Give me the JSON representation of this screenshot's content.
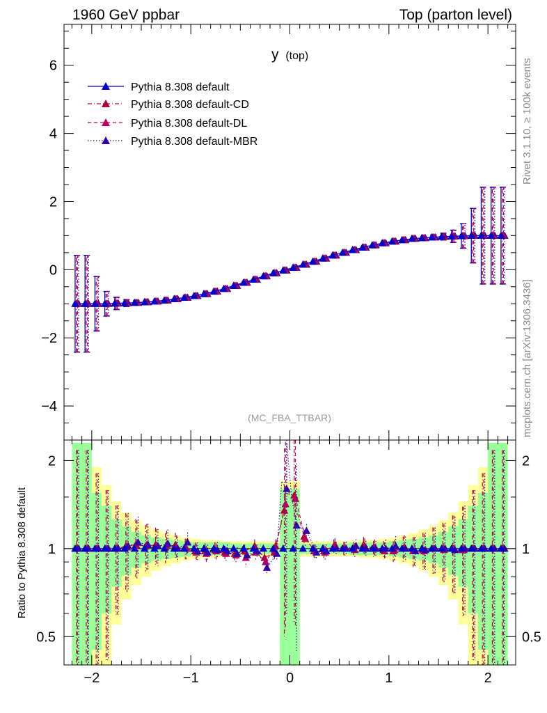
{
  "header": {
    "left_label": "1960 GeV ppbar",
    "right_label": "Top (parton level)"
  },
  "side_labels": {
    "rivet": "Rivet 3.1.10, ≥ 100k events",
    "mcplots": "mcplots.cern.ch [arXiv:1306.3436]"
  },
  "chart_data": {
    "type": "line",
    "title": "y",
    "title_sub": "(top)",
    "analysis_tag": "(MC_FBA_TTBAR)",
    "xlim": [
      -2.28,
      2.28
    ],
    "ylim": [
      -5.0,
      7.2
    ],
    "x_ticks": [
      -2,
      -1,
      0,
      1,
      2
    ],
    "x_tick_labels": [
      "−2",
      "−1",
      "0",
      "1",
      "2"
    ],
    "y_ticks": [
      -4,
      -2,
      0,
      2,
      4,
      6
    ],
    "y_tick_labels": [
      "−4",
      "−2",
      "0",
      "2",
      "4",
      "6"
    ],
    "legend_position": "top-left",
    "series": [
      {
        "name": "Pythia 8.308 default",
        "color": "#0000cc",
        "style": "solid",
        "role": "reference"
      },
      {
        "name": "Pythia 8.308 default-CD",
        "color": "#b0003a",
        "style": "dashdot"
      },
      {
        "name": "Pythia 8.308 default-DL",
        "color": "#b8005a",
        "style": "dashed"
      },
      {
        "name": "Pythia 8.308 default-MBR",
        "color": "#3300aa",
        "style": "dotted"
      }
    ],
    "ratio": {
      "ylabel": "Ratio to Pythia 8.308 default",
      "ylim": [
        0.4,
        2.35
      ],
      "scale": "log",
      "y_ticks": [
        0.5,
        1,
        2
      ],
      "y_tick_labels": [
        "0.5",
        "1",
        "2"
      ],
      "band_colors": {
        "inner": "#99ff99",
        "outer": "#ffff99"
      },
      "x": [
        -2.15,
        -2.05,
        -1.95,
        -1.85,
        -1.75,
        -1.65,
        -1.55,
        -1.45,
        -1.35,
        -1.25,
        -1.15,
        -1.05,
        -0.95,
        -0.85,
        -0.75,
        -0.65,
        -0.55,
        -0.45,
        -0.35,
        -0.25,
        -0.15,
        -0.05,
        0.05,
        0.15,
        0.25,
        0.35,
        0.45,
        0.55,
        0.65,
        0.75,
        0.85,
        0.95,
        1.05,
        1.15,
        1.25,
        1.35,
        1.45,
        1.55,
        1.65,
        1.75,
        1.85,
        1.95,
        2.05,
        2.15
      ],
      "band_inner": [
        1.3,
        1.3,
        0.55,
        0.4,
        0.26,
        0.19,
        0.14,
        0.11,
        0.09,
        0.08,
        0.07,
        0.06,
        0.05,
        0.05,
        0.05,
        0.05,
        0.04,
        0.04,
        0.04,
        0.04,
        0.04,
        0.6,
        0.6,
        0.04,
        0.04,
        0.04,
        0.04,
        0.04,
        0.05,
        0.05,
        0.05,
        0.05,
        0.06,
        0.07,
        0.08,
        0.09,
        0.11,
        0.14,
        0.19,
        0.26,
        0.4,
        0.55,
        1.3,
        1.3
      ],
      "band_outer": [
        1.3,
        1.3,
        0.9,
        0.65,
        0.45,
        0.33,
        0.25,
        0.2,
        0.16,
        0.13,
        0.11,
        0.09,
        0.08,
        0.07,
        0.07,
        0.06,
        0.06,
        0.06,
        0.06,
        0.06,
        0.06,
        0.7,
        0.7,
        0.06,
        0.06,
        0.06,
        0.06,
        0.06,
        0.06,
        0.07,
        0.07,
        0.08,
        0.09,
        0.11,
        0.13,
        0.16,
        0.2,
        0.25,
        0.33,
        0.45,
        0.65,
        0.9,
        1.3,
        1.3
      ],
      "series_values": [
        [
          1,
          1,
          1,
          1,
          1,
          1,
          1,
          1,
          1,
          1,
          1,
          1,
          1,
          1,
          1,
          1,
          1,
          1,
          1,
          1,
          1,
          1,
          1,
          1,
          1,
          1,
          1,
          1,
          1,
          1,
          1,
          1,
          1,
          1,
          1,
          1,
          1,
          1,
          1,
          1,
          1,
          1,
          1,
          1
        ],
        [
          1,
          1,
          1,
          1,
          1,
          1.02,
          1.03,
          1.02,
          1.03,
          1.01,
          1.03,
          1.0,
          0.98,
          0.98,
          0.99,
          0.97,
          0.96,
          0.98,
          1.02,
          0.93,
          0.97,
          1.35,
          1.52,
          1.1,
          0.98,
          0.98,
          1.02,
          1.0,
          1.0,
          1.03,
          1.0,
          0.99,
          0.98,
          1.0,
          0.98,
          0.99,
          1.0,
          1.0,
          1.0,
          0.99,
          1.0,
          1.0,
          1.0,
          1.0
        ],
        [
          1,
          1,
          1,
          1,
          1,
          1.01,
          1.02,
          1.03,
          1.02,
          1.03,
          1.01,
          1.0,
          0.97,
          0.96,
          0.98,
          0.96,
          0.95,
          0.93,
          0.97,
          0.9,
          1.02,
          1.42,
          1.48,
          1.08,
          0.98,
          0.97,
          1.03,
          1.0,
          0.99,
          1.02,
          1.01,
          0.98,
          0.99,
          1.01,
          0.98,
          0.98,
          1.0,
          0.99,
          1.0,
          0.99,
          1.0,
          1.0,
          1.0,
          1.0
        ],
        [
          1,
          1,
          1,
          1,
          1,
          1.02,
          1.05,
          1.03,
          1.02,
          1.04,
          1.0,
          1.05,
          0.98,
          0.97,
          0.99,
          0.98,
          0.96,
          0.95,
          0.98,
          0.86,
          0.96,
          1.6,
          1.2,
          1.15,
          0.97,
          0.98,
          1.0,
          1.0,
          1.02,
          1.0,
          1.0,
          1.0,
          1.02,
          1.0,
          0.98,
          0.99,
          1.0,
          1.0,
          0.99,
          1.0,
          1.0,
          1.0,
          1.0,
          1.0
        ]
      ],
      "series_peaks": [
        null,
        [
          [
            -0.05,
            1.55
          ],
          [
            0.05,
            1.45
          ]
        ],
        [
          [
            -0.05,
            1.6
          ],
          [
            0.05,
            1.5
          ]
        ],
        [
          [
            -0.1,
            1.7
          ],
          [
            -0.05,
            2.3
          ],
          [
            0.0,
            1.5
          ]
        ]
      ]
    },
    "main": {
      "x": [
        -2.15,
        -2.05,
        -1.95,
        -1.85,
        -1.75,
        -1.65,
        -1.55,
        -1.45,
        -1.35,
        -1.25,
        -1.15,
        -1.05,
        -0.95,
        -0.85,
        -0.75,
        -0.65,
        -0.55,
        -0.45,
        -0.35,
        -0.25,
        -0.15,
        -0.05,
        0.05,
        0.15,
        0.25,
        0.35,
        0.45,
        0.55,
        0.65,
        0.75,
        0.85,
        0.95,
        1.05,
        1.15,
        1.25,
        1.35,
        1.45,
        1.55,
        1.65,
        1.75,
        1.85,
        1.95,
        2.05,
        2.15
      ],
      "values": [
        -1.0,
        -1.0,
        -1.0,
        -1.0,
        -0.99,
        -0.98,
        -0.97,
        -0.95,
        -0.93,
        -0.9,
        -0.86,
        -0.82,
        -0.77,
        -0.71,
        -0.64,
        -0.56,
        -0.47,
        -0.38,
        -0.29,
        -0.19,
        -0.1,
        -0.02,
        0.06,
        0.15,
        0.24,
        0.33,
        0.42,
        0.5,
        0.58,
        0.65,
        0.72,
        0.78,
        0.83,
        0.87,
        0.91,
        0.93,
        0.95,
        0.97,
        0.98,
        0.99,
        1.0,
        1.0,
        1.0,
        1.0
      ],
      "errors": [
        1.42,
        1.42,
        0.8,
        0.36,
        0.18,
        0.1,
        0.07,
        0.05,
        0.04,
        0.04,
        0.03,
        0.03,
        0.03,
        0.03,
        0.03,
        0.03,
        0.03,
        0.03,
        0.03,
        0.03,
        0.03,
        0.03,
        0.03,
        0.03,
        0.03,
        0.03,
        0.03,
        0.03,
        0.03,
        0.03,
        0.03,
        0.03,
        0.03,
        0.04,
        0.04,
        0.05,
        0.07,
        0.1,
        0.18,
        0.36,
        0.8,
        1.42,
        1.42,
        1.42
      ]
    }
  }
}
